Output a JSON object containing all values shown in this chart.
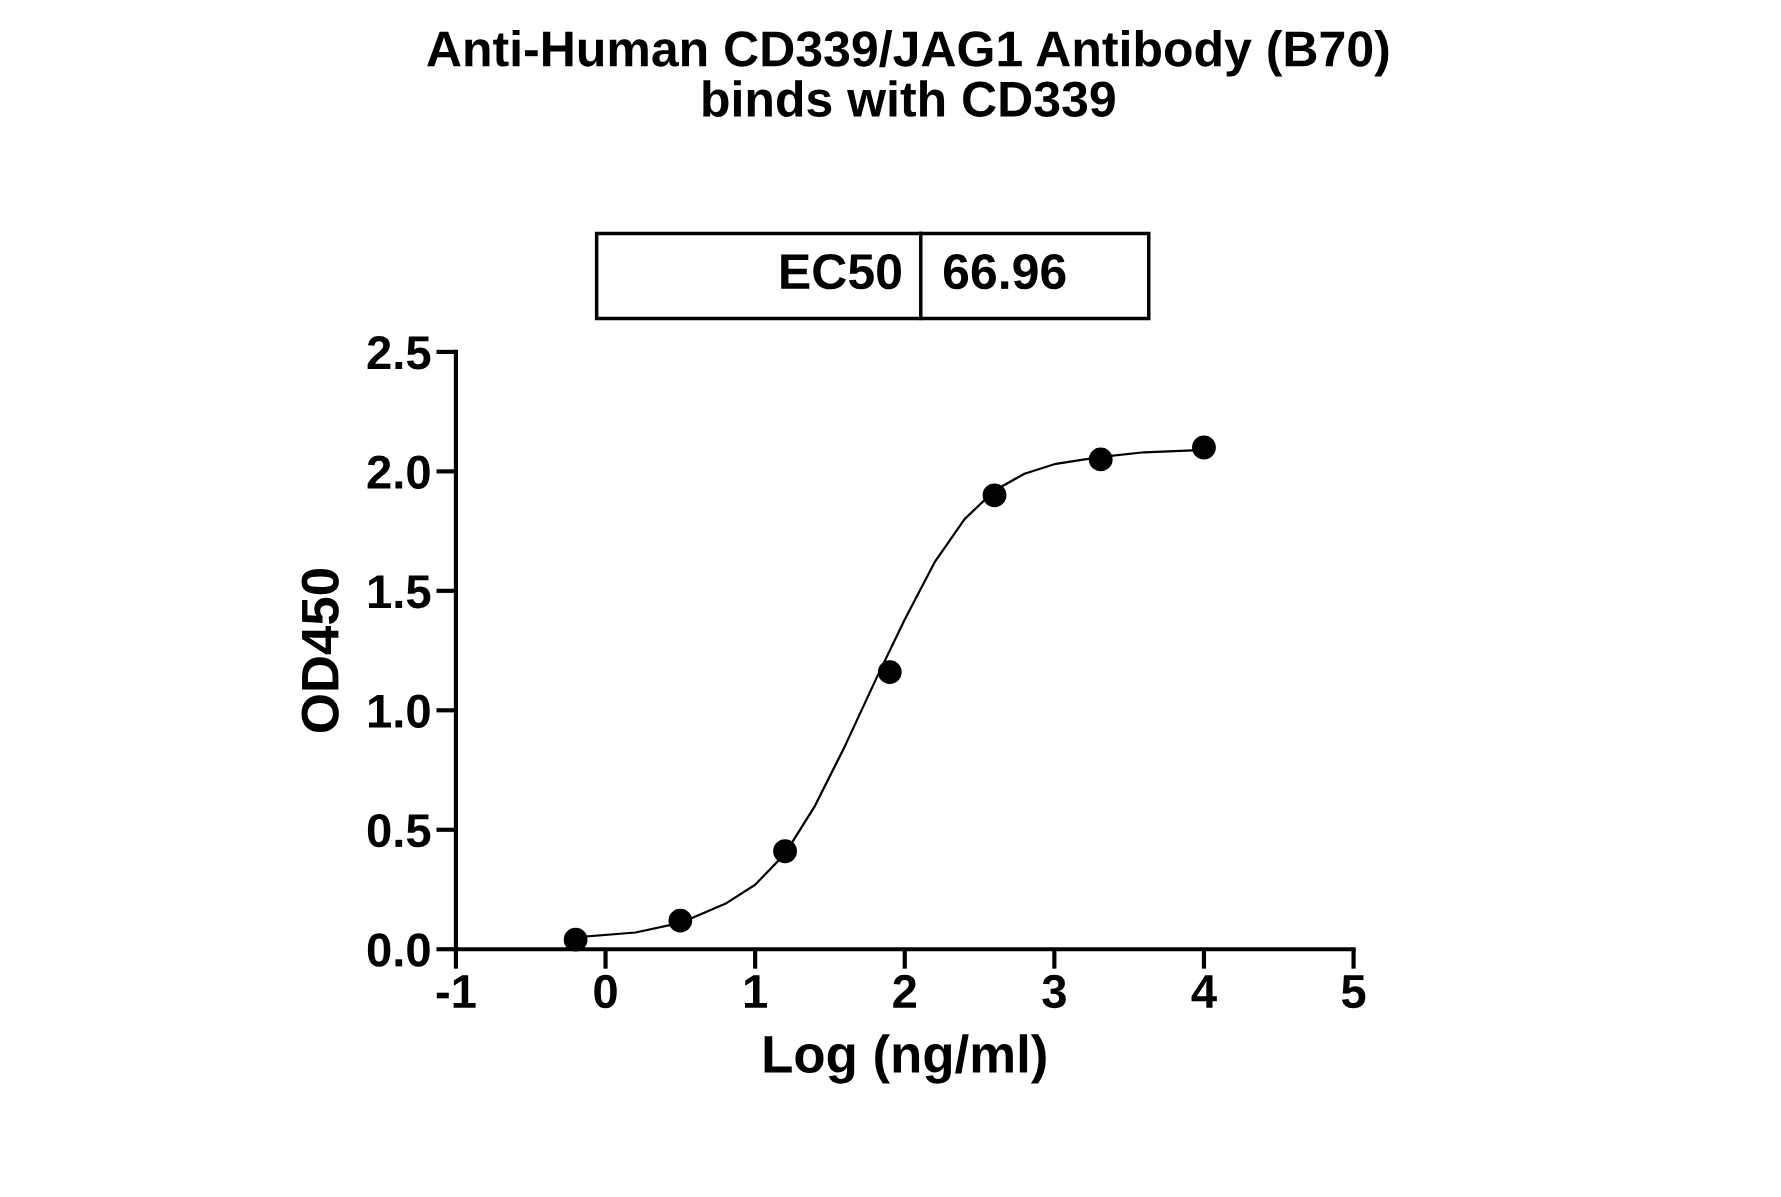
{
  "chart_data": {
    "type": "scatter",
    "title": "Anti-Human CD339/JAG1 Antibody (B70)\nbinds with CD339",
    "xlabel": "Log (ng/ml)",
    "ylabel": "OD450",
    "xlim": [
      -1,
      5
    ],
    "xticks": [
      {
        "value": -1,
        "label": "-1"
      },
      0,
      1,
      2,
      3,
      4,
      5
    ],
    "ylim": [
      0,
      2.5
    ],
    "yticks": [
      {
        "value": 0,
        "label": "0.0"
      },
      {
        "value": 0.5,
        "label": "0.5"
      },
      {
        "value": 1,
        "label": "1.0"
      },
      {
        "value": 1.5,
        "label": "1.5"
      },
      {
        "value": 2,
        "label": "2.0"
      },
      {
        "value": 2.5,
        "label": "2.5"
      }
    ],
    "annotations": [
      "EC50",
      "66.96"
    ],
    "grid": false,
    "marker": "circle",
    "series": [
      {
        "color": "#000000",
        "x": [
          -0.2,
          0.5,
          1.2,
          1.9,
          2.6,
          3.31,
          4.0
        ],
        "values": [
          0.04,
          0.12,
          0.41,
          1.16,
          1.9,
          2.05,
          2.1
        ]
      },
      {
        "type": "line",
        "color": "#000000",
        "marker": "none",
        "x": [
          -0.2,
          0.2,
          0.5,
          0.8,
          1.0,
          1.2,
          1.4,
          1.6,
          1.8,
          2.0,
          2.2,
          2.4,
          2.6,
          2.8,
          3.0,
          3.3,
          3.6,
          4.0
        ],
        "values": [
          0.05,
          0.07,
          0.11,
          0.19,
          0.27,
          0.4,
          0.6,
          0.85,
          1.12,
          1.38,
          1.62,
          1.8,
          1.92,
          1.99,
          2.03,
          2.06,
          2.08,
          2.09
        ]
      }
    ]
  }
}
